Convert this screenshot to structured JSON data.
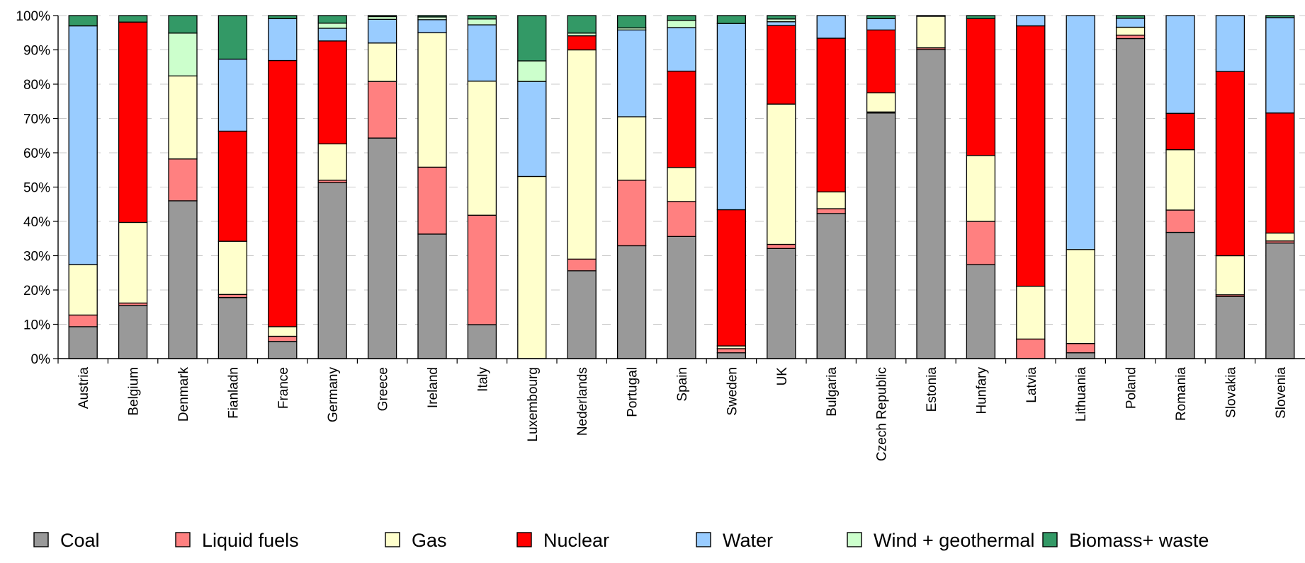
{
  "chart_data": {
    "type": "bar",
    "stacked": true,
    "normalized": true,
    "title": "",
    "xlabel": "",
    "ylabel": "",
    "ylim": [
      0,
      100
    ],
    "y_ticks": [
      "0%",
      "10%",
      "20%",
      "30%",
      "40%",
      "50%",
      "60%",
      "70%",
      "80%",
      "90%",
      "100%"
    ],
    "grid": "horizontal dashed",
    "legend_position": "bottom",
    "categories": [
      "Austria",
      "Belgium",
      "Denmark",
      "Fianladn",
      "France",
      "Germany",
      "Greece",
      "Ireland",
      "Italy",
      "Luxembourg",
      "Nederlands",
      "Portugal",
      "Spain",
      "Sweden",
      "UK",
      "Bulgaria",
      "Czech Republic",
      "Estonia",
      "Hunfary",
      "Latvia",
      "Lithuania",
      "Poland",
      "Romania",
      "Slovakia",
      "Slovenia"
    ],
    "series": [
      {
        "name": "Coal",
        "color": "#999999",
        "values": [
          9.3,
          15.5,
          46.0,
          17.8,
          5.0,
          51.3,
          64.3,
          36.3,
          9.9,
          0.0,
          25.6,
          32.9,
          35.6,
          1.7,
          32.1,
          42.3,
          71.6,
          90.1,
          27.4,
          0.0,
          1.7,
          93.3,
          36.8,
          18.1,
          33.7
        ]
      },
      {
        "name": "Liquid fuels",
        "color": "#ff8080",
        "values": [
          3.4,
          0.7,
          12.2,
          0.9,
          1.5,
          0.7,
          16.5,
          19.5,
          31.9,
          0.0,
          3.4,
          19.1,
          10.2,
          1.2,
          1.2,
          1.4,
          0.3,
          0.5,
          12.6,
          5.7,
          2.7,
          1.0,
          6.5,
          0.5,
          0.6
        ]
      },
      {
        "name": "Gas",
        "color": "#ffffcc",
        "values": [
          14.7,
          23.5,
          24.2,
          15.5,
          2.8,
          10.6,
          11.2,
          39.2,
          39.1,
          53.1,
          61.0,
          18.5,
          9.9,
          0.8,
          40.9,
          4.9,
          5.6,
          9.2,
          19.2,
          15.4,
          27.4,
          2.3,
          17.6,
          11.4,
          2.3
        ]
      },
      {
        "name": "Nuclear",
        "color": "#ff0000",
        "values": [
          0.0,
          58.4,
          0.0,
          32.1,
          77.6,
          30.0,
          0.0,
          0.0,
          0.0,
          0.0,
          4.1,
          0.0,
          28.1,
          39.7,
          22.9,
          44.8,
          18.3,
          0.0,
          39.9,
          75.9,
          0.0,
          0.0,
          10.6,
          53.7,
          35.0
        ]
      },
      {
        "name": "Water",
        "color": "#99ccff",
        "values": [
          69.6,
          0.0,
          0.0,
          21.0,
          12.2,
          3.7,
          6.9,
          3.8,
          16.4,
          27.7,
          0.0,
          25.3,
          12.7,
          54.3,
          1.1,
          6.6,
          3.3,
          0.0,
          0.0,
          3.0,
          68.2,
          2.6,
          28.5,
          16.3,
          27.8
        ]
      },
      {
        "name": "Wind + geothermal",
        "color": "#ccffcc",
        "values": [
          0.0,
          0.0,
          12.5,
          0.0,
          0.0,
          1.5,
          0.8,
          0.8,
          1.7,
          6.0,
          0.8,
          0.6,
          2.1,
          0.0,
          0.8,
          0.0,
          0.0,
          0.0,
          0.0,
          0.0,
          0.0,
          0.0,
          0.0,
          0.0,
          0.0
        ]
      },
      {
        "name": "Biomass+ waste",
        "color": "#339966",
        "values": [
          3.0,
          1.9,
          5.1,
          12.7,
          0.9,
          2.2,
          0.3,
          0.4,
          1.0,
          13.2,
          5.1,
          3.6,
          1.4,
          2.3,
          1.0,
          0.0,
          0.9,
          0.2,
          0.9,
          0.0,
          0.0,
          0.8,
          0.0,
          0.0,
          0.6
        ]
      }
    ]
  }
}
